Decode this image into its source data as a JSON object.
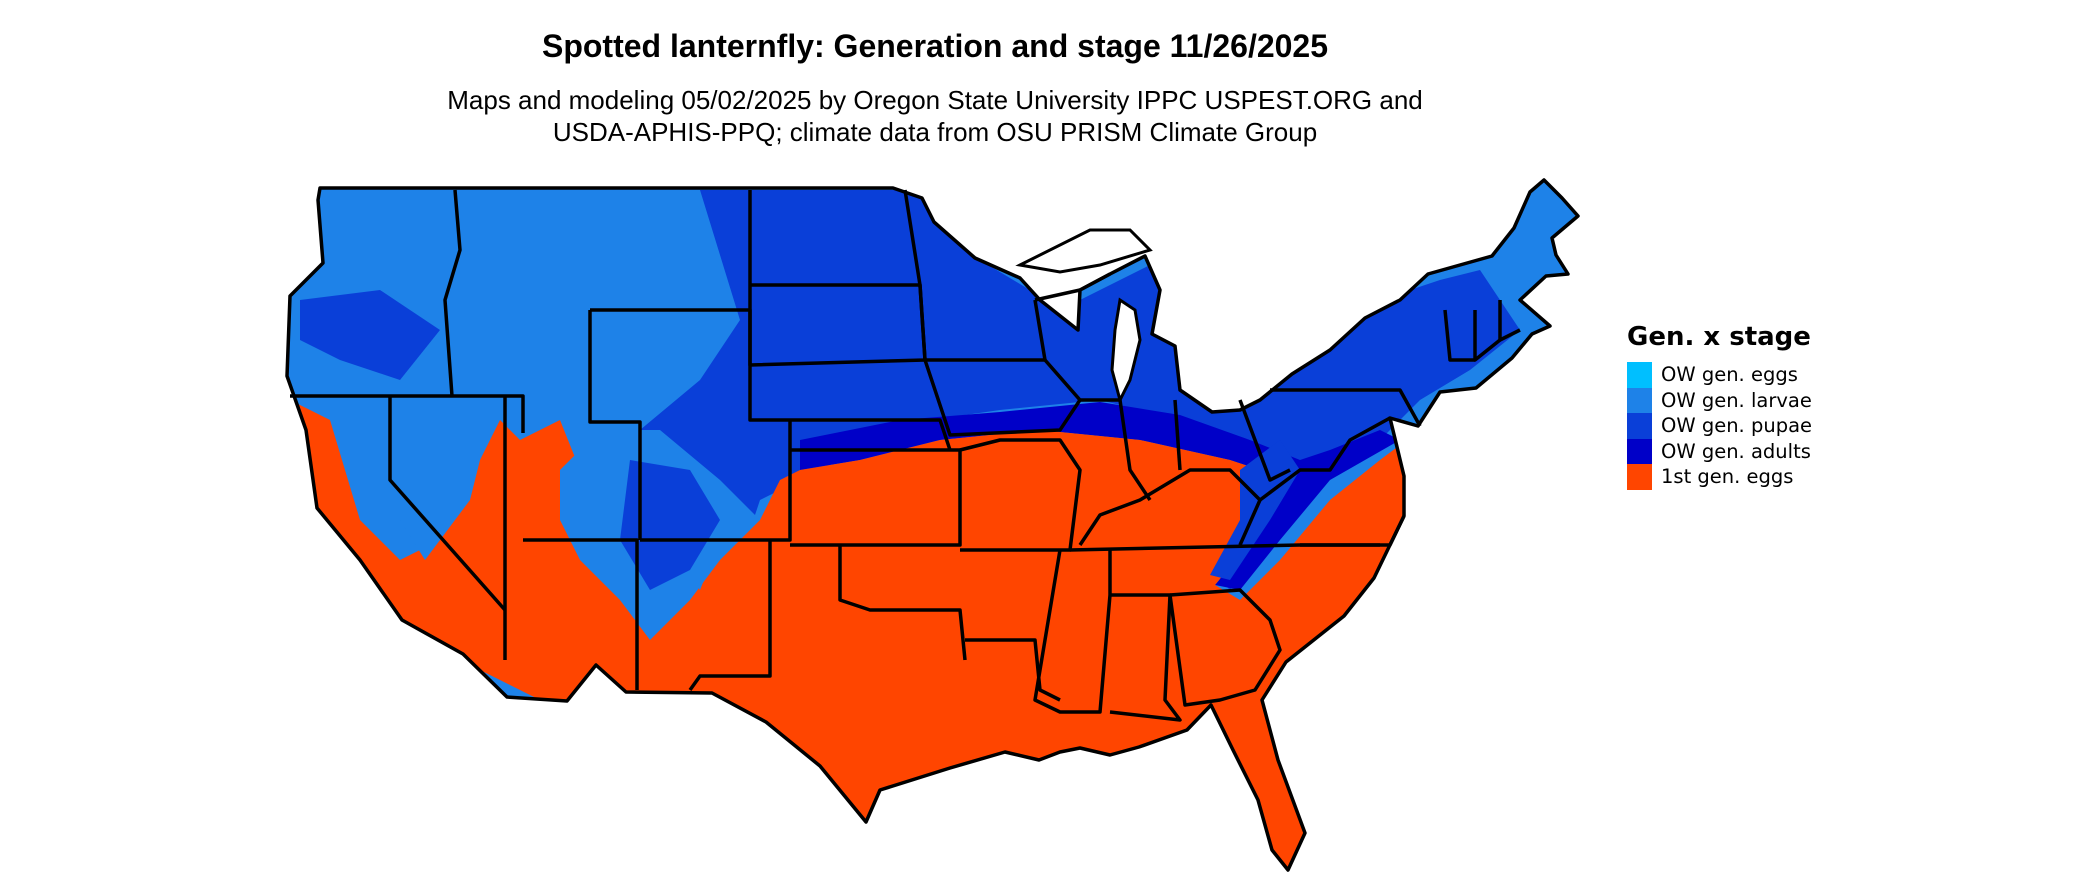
{
  "header": {
    "title": "Spotted lanternfly: Generation and stage 11/26/2025",
    "subtitle_line1": "Maps and modeling 05/02/2025 by Oregon State University IPPC USPEST.ORG and",
    "subtitle_line2": "USDA-APHIS-PPQ; climate data from OSU PRISM Climate Group"
  },
  "legend": {
    "title": "Gen. x stage",
    "items": [
      {
        "label": "OW gen. eggs",
        "color": "#00BFFF"
      },
      {
        "label": "OW gen. larvae",
        "color": "#1E82E8"
      },
      {
        "label": "OW gen. pupae",
        "color": "#0A3FD8"
      },
      {
        "label": "OW gen. adults",
        "color": "#0000C8"
      },
      {
        "label": "1st gen. eggs",
        "color": "#FF4500"
      }
    ]
  },
  "map": {
    "region": "Contiguous United States",
    "boundary_color": "#000000"
  }
}
